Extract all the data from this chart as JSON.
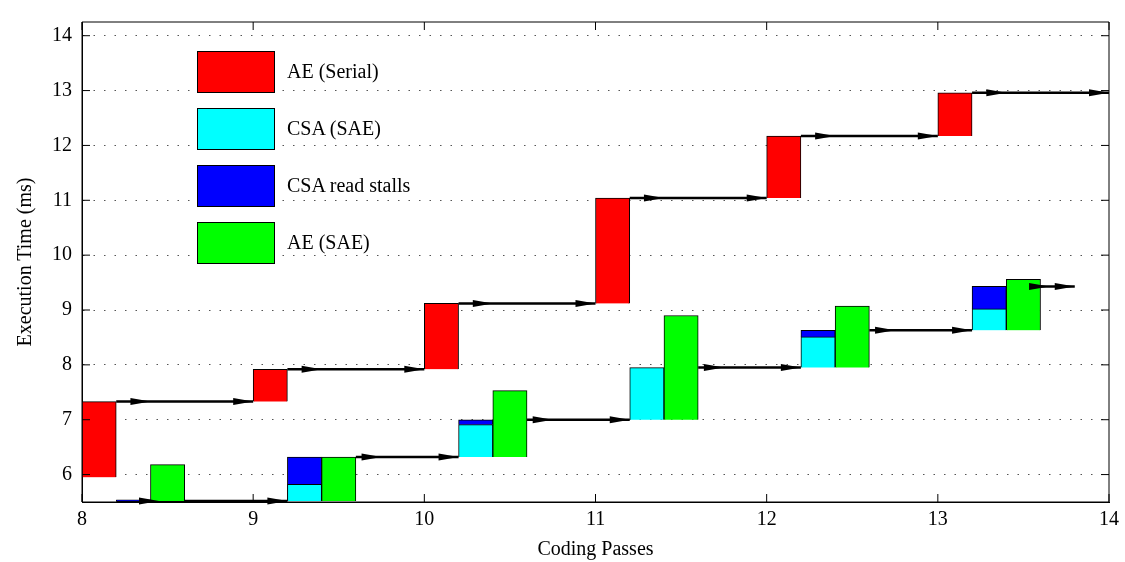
{
  "chart_data": {
    "type": "bar",
    "xlabel": "Coding Passes",
    "ylabel": "Execution Time (ms)",
    "xlim": [
      8,
      14
    ],
    "xticks": [
      8,
      9,
      10,
      11,
      12,
      13,
      14
    ],
    "ylim": [
      5.5,
      14.25
    ],
    "yticks": [
      6,
      7,
      8,
      9,
      10,
      11,
      12,
      13,
      14
    ],
    "grid": "y",
    "legend": "top left",
    "marker": "none",
    "line_style": "solid",
    "series": [
      {
        "name": "AE (Serial)",
        "color": "#ff0000",
        "x": [
          8.1,
          9.1,
          10.1,
          11.1,
          12.1,
          13.1
        ],
        "base": [
          5.95,
          7.33,
          7.92,
          9.12,
          11.04,
          12.17
        ],
        "values": [
          1.38,
          0.59,
          1.2,
          1.92,
          1.13,
          0.79
        ]
      },
      {
        "name": "CSA (SAE)",
        "color": "#00ffff",
        "x": [
          9.3,
          10.3,
          11.3,
          12.3,
          13.3
        ],
        "base": [
          5.52,
          6.32,
          7.0,
          7.95,
          8.63
        ],
        "values": [
          0.3,
          0.59,
          0.95,
          0.56,
          0.39
        ]
      },
      {
        "name": "CSA read stalls",
        "color": "#0000ff",
        "x": [
          8.3,
          9.3,
          10.3,
          12.3,
          13.3
        ],
        "base": [
          5.52,
          5.82,
          6.91,
          8.51,
          9.02
        ],
        "values": [
          0.01,
          0.5,
          0.09,
          0.12,
          0.41
        ]
      },
      {
        "name": "AE (SAE)",
        "color": "#00ff00",
        "x": [
          8.5,
          9.5,
          10.5,
          11.5,
          12.5,
          13.5
        ],
        "base": [
          5.52,
          5.52,
          6.32,
          7.0,
          7.95,
          8.63
        ],
        "values": [
          0.66,
          0.8,
          1.21,
          1.9,
          1.12,
          0.93
        ]
      },
      {
        "type": "line",
        "color": "#000000",
        "x": [
          8.2,
          9.0,
          9.1,
          9.2,
          10.0,
          10.1,
          10.2,
          11.0,
          11.1,
          11.2,
          12.0,
          12.1,
          12.2,
          13.0,
          13.1,
          13.2,
          14.0
        ],
        "values": [
          7.33,
          7.33,
          null,
          7.92,
          7.92,
          null,
          9.12,
          9.12,
          null,
          11.04,
          11.04,
          null,
          12.17,
          12.17,
          null,
          12.96,
          12.96
        ]
      },
      {
        "type": "line",
        "color": "#000000",
        "x": [
          8.2,
          9.2,
          9.4,
          9.6,
          10.2,
          10.4,
          10.6,
          11.2,
          11.4,
          11.6,
          12.2,
          12.4,
          12.6,
          13.2,
          13.4,
          13.6,
          13.8
        ],
        "values": [
          5.52,
          5.52,
          null,
          6.32,
          6.32,
          null,
          7.0,
          7.0,
          null,
          7.95,
          7.95,
          null,
          8.63,
          8.63,
          null,
          9.43,
          9.43
        ]
      }
    ]
  }
}
